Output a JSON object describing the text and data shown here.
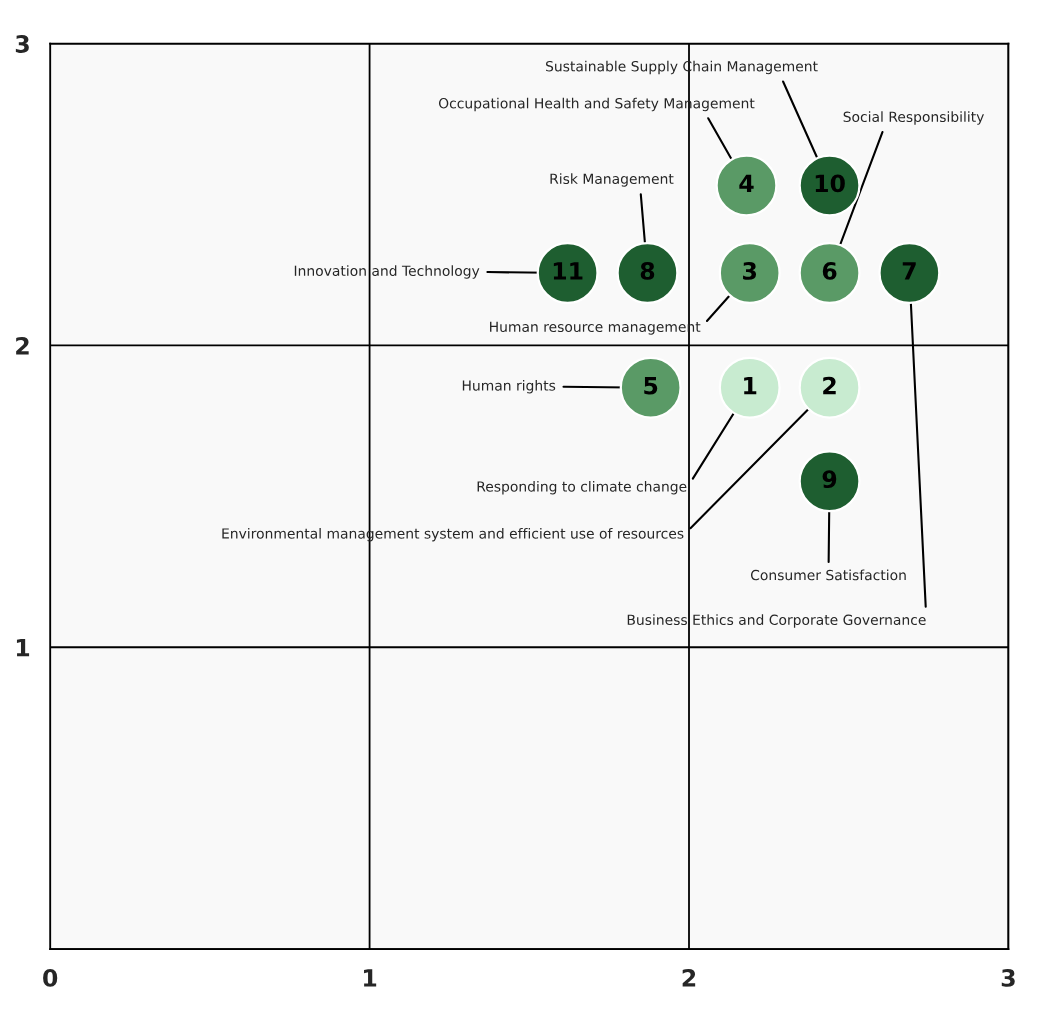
{
  "chart_data": {
    "type": "bubble",
    "x": [
      2.19,
      2.44,
      2.19,
      2.18,
      1.88,
      2.44,
      2.69,
      1.87,
      2.44,
      2.44,
      1.62
    ],
    "values": [
      1.86,
      1.86,
      2.24,
      2.53,
      1.86,
      2.24,
      2.24,
      2.24,
      1.55,
      2.53,
      2.24
    ],
    "sizes": [
      1,
      1,
      1,
      1,
      1,
      1,
      1,
      1,
      1,
      1,
      1
    ],
    "colors": [
      "#c8ebd0",
      "#c8ebd0",
      "#5a9a66",
      "#5a9a66",
      "#5a9a66",
      "#5a9a66",
      "#1e5e30",
      "#1e5e30",
      "#1e5e30",
      "#1e5e30",
      "#1e5e30"
    ],
    "xlim": [
      0,
      3
    ],
    "ylim": [
      0,
      3
    ],
    "xticks": [
      0,
      1,
      2,
      3
    ],
    "yticks": [
      {
        "value": 0,
        "label": null
      },
      1,
      2,
      3
    ],
    "grid": true,
    "annotations": [
      {
        "text": "Sustainable Supply Chain Management",
        "x": 2.44,
        "y": 2.53
      },
      {
        "text": "Occupational Health and Safety Management",
        "x": 2.18,
        "y": 2.53
      },
      {
        "text": "Social Responsibility",
        "x": 2.44,
        "y": 2.24
      },
      {
        "text": "Risk Management",
        "x": 1.87,
        "y": 2.24
      },
      {
        "text": "Innovation and Technology",
        "x": 1.62,
        "y": 2.24
      },
      {
        "text": "Human resource management",
        "x": 2.19,
        "y": 2.24
      },
      {
        "text": "Human rights",
        "x": 1.88,
        "y": 1.86
      },
      {
        "text": "Responding to climate change",
        "x": 2.19,
        "y": 1.86
      },
      {
        "text": "Environmental management system and efficient use of resources",
        "x": 2.44,
        "y": 1.86
      },
      {
        "text": "Consumer Satisfaction",
        "x": 2.44,
        "y": 1.55
      },
      {
        "text": "Business Ethics and Corporate Governance",
        "x": 2.69,
        "y": 2.24
      },
      {
        "text": "1",
        "x": 2.19,
        "y": 1.86
      },
      {
        "text": "2",
        "x": 2.44,
        "y": 1.86
      },
      {
        "text": "3",
        "x": 2.19,
        "y": 2.24
      },
      {
        "text": "4",
        "x": 2.18,
        "y": 2.53
      },
      {
        "text": "5",
        "x": 1.88,
        "y": 1.86
      },
      {
        "text": "6",
        "x": 2.44,
        "y": 2.24
      },
      {
        "text": "7",
        "x": 2.69,
        "y": 2.24
      },
      {
        "text": "8",
        "x": 1.87,
        "y": 2.24
      },
      {
        "text": "9",
        "x": 2.44,
        "y": 1.55
      },
      {
        "text": "10",
        "x": 2.44,
        "y": 2.53
      },
      {
        "text": "11",
        "x": 1.62,
        "y": 2.24
      }
    ]
  }
}
